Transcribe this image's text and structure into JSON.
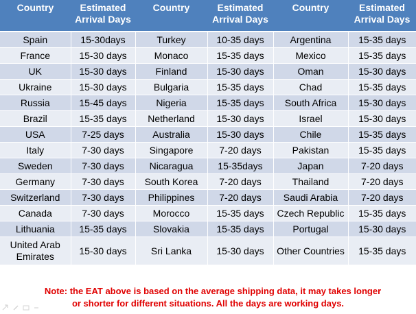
{
  "headers": {
    "country": "Country",
    "eta": "Estimated Arrival Days"
  },
  "rows": [
    [
      {
        "country": "Spain",
        "days": "15-30days"
      },
      {
        "country": "Turkey",
        "days": "10-35 days"
      },
      {
        "country": "Argentina",
        "days": "15-35 days"
      }
    ],
    [
      {
        "country": "France",
        "days": "15-30 days"
      },
      {
        "country": "Monaco",
        "days": "15-35 days"
      },
      {
        "country": "Mexico",
        "days": "15-35 days"
      }
    ],
    [
      {
        "country": "UK",
        "days": "15-30 days"
      },
      {
        "country": "Finland",
        "days": "15-30 days"
      },
      {
        "country": "Oman",
        "days": "15-30 days"
      }
    ],
    [
      {
        "country": "Ukraine",
        "days": "15-30 days"
      },
      {
        "country": "Bulgaria",
        "days": "15-35 days"
      },
      {
        "country": "Chad",
        "days": "15-35 days"
      }
    ],
    [
      {
        "country": "Russia",
        "days": "15-45 days"
      },
      {
        "country": "Nigeria",
        "days": "15-35 days"
      },
      {
        "country": "South Africa",
        "days": "15-30 days"
      }
    ],
    [
      {
        "country": "Brazil",
        "days": "15-35 days"
      },
      {
        "country": "Netherland",
        "days": "15-30 days"
      },
      {
        "country": "Israel",
        "days": "15-30 days"
      }
    ],
    [
      {
        "country": "USA",
        "days": "7-25 days"
      },
      {
        "country": "Australia",
        "days": "15-30 days"
      },
      {
        "country": "Chile",
        "days": "15-35 days"
      }
    ],
    [
      {
        "country": "Italy",
        "days": "7-30 days"
      },
      {
        "country": "Singapore",
        "days": "7-20 days"
      },
      {
        "country": "Pakistan",
        "days": "15-35 days"
      }
    ],
    [
      {
        "country": "Sweden",
        "days": "7-30 days"
      },
      {
        "country": "Nicaragua",
        "days": "15-35days"
      },
      {
        "country": "Japan",
        "days": "7-20 days"
      }
    ],
    [
      {
        "country": "Germany",
        "days": "7-30 days"
      },
      {
        "country": "South Korea",
        "days": "7-20 days"
      },
      {
        "country": "Thailand",
        "days": "7-20 days"
      }
    ],
    [
      {
        "country": "Switzerland",
        "days": "7-30 days"
      },
      {
        "country": "Philippines",
        "days": "7-20 days"
      },
      {
        "country": "Saudi Arabia",
        "days": "7-20 days"
      }
    ],
    [
      {
        "country": "Canada",
        "days": "7-30 days"
      },
      {
        "country": "Morocco",
        "days": "15-35 days"
      },
      {
        "country": "Czech Republic",
        "days": "15-35 days"
      }
    ],
    [
      {
        "country": "Lithuania",
        "days": "15-35 days"
      },
      {
        "country": "Slovakia",
        "days": "15-35 days"
      },
      {
        "country": "Portugal",
        "days": "15-30 days"
      }
    ],
    [
      {
        "country": "United Arab Emirates",
        "days": "15-30 days"
      },
      {
        "country": "Sri Lanka",
        "days": "15-30 days"
      },
      {
        "country": "Other Countries",
        "days": "15-35 days"
      }
    ]
  ],
  "note": {
    "line1": "Note: the EAT above is based on the average shipping data, it may takes longer",
    "line2": "or shorter for different situations.  All the days are working days."
  },
  "colors": {
    "header_bg": "#4f81bd",
    "row_odd": "#d0d8e8",
    "row_even": "#e9edf4",
    "note_text": "#e00000"
  },
  "toolbar_icons": [
    "arrow-icon",
    "pen-icon",
    "slide-icon",
    "menu-icon"
  ]
}
